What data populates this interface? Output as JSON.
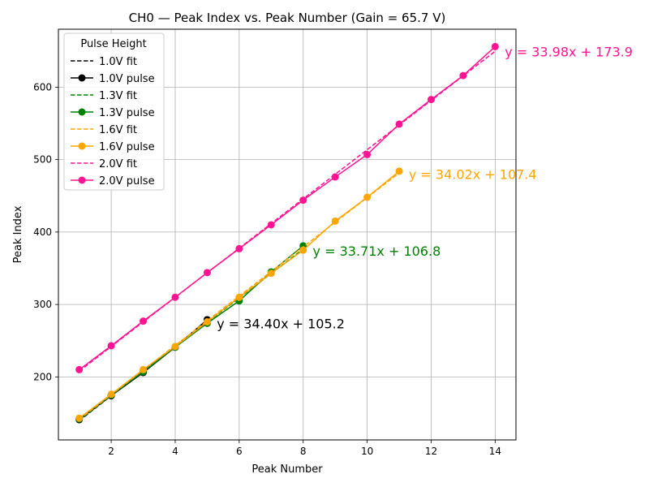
{
  "chart_data": {
    "type": "line",
    "title": "CH0 — Peak Index vs. Peak Number (Gain = 65.7 V)",
    "xlabel": "Peak Number",
    "ylabel": "Peak Index",
    "xlim": [
      0.35,
      14.65
    ],
    "ylim": [
      113,
      680
    ],
    "xticks": [
      2,
      4,
      6,
      8,
      10,
      12,
      14
    ],
    "yticks": [
      200,
      300,
      400,
      500,
      600
    ],
    "grid": true,
    "legend": {
      "title": "Pulse Height",
      "placement": "top-left"
    },
    "series": [
      {
        "name": "1.0V fit",
        "kind": "fit",
        "color": "#000000",
        "slope": 34.4,
        "intercept": 105.2,
        "x": [
          1,
          5
        ]
      },
      {
        "name": "1.0V pulse",
        "kind": "pulse",
        "color": "#000000",
        "x": [
          1,
          2,
          3,
          4,
          5
        ],
        "y": [
          141,
          174,
          206,
          241,
          279
        ]
      },
      {
        "name": "1.3V fit",
        "kind": "fit",
        "color": "#008000",
        "slope": 33.71,
        "intercept": 106.8,
        "x": [
          1,
          8
        ]
      },
      {
        "name": "1.3V pulse",
        "kind": "pulse",
        "color": "#008000",
        "x": [
          1,
          2,
          3,
          4,
          5,
          6,
          7,
          8
        ],
        "y": [
          142,
          175,
          207,
          241,
          274,
          305,
          345,
          381
        ]
      },
      {
        "name": "1.6V fit",
        "kind": "fit",
        "color": "#ffa500",
        "slope": 34.02,
        "intercept": 107.4,
        "x": [
          1,
          11
        ]
      },
      {
        "name": "1.6V pulse",
        "kind": "pulse",
        "color": "#ffa500",
        "x": [
          1,
          2,
          3,
          4,
          5,
          6,
          7,
          8,
          9,
          10,
          11
        ],
        "y": [
          143,
          176,
          210,
          242,
          276,
          310,
          343,
          375,
          415,
          448,
          484
        ]
      },
      {
        "name": "2.0V fit",
        "kind": "fit",
        "color": "#ff1493",
        "slope": 33.98,
        "intercept": 173.9,
        "x": [
          1,
          14
        ]
      },
      {
        "name": "2.0V pulse",
        "kind": "pulse",
        "color": "#ff1493",
        "x": [
          1,
          2,
          3,
          4,
          5,
          6,
          7,
          8,
          9,
          10,
          11,
          12,
          13,
          14
        ],
        "y": [
          210,
          243,
          277,
          310,
          344,
          377,
          410,
          444,
          476,
          507,
          549,
          583,
          616,
          656
        ]
      }
    ],
    "annotations": [
      {
        "text": "y = 34.40x + 105.2",
        "color": "#000000",
        "x": 5.3,
        "y": 274
      },
      {
        "text": "y = 33.71x + 106.8",
        "color": "#008000",
        "x": 8.3,
        "y": 374
      },
      {
        "text": "y = 34.02x + 107.4",
        "color": "#ffa500",
        "x": 11.3,
        "y": 480
      },
      {
        "text": "y = 33.98x + 173.9",
        "color": "#ff1493",
        "x": 14.3,
        "y": 649
      }
    ]
  }
}
